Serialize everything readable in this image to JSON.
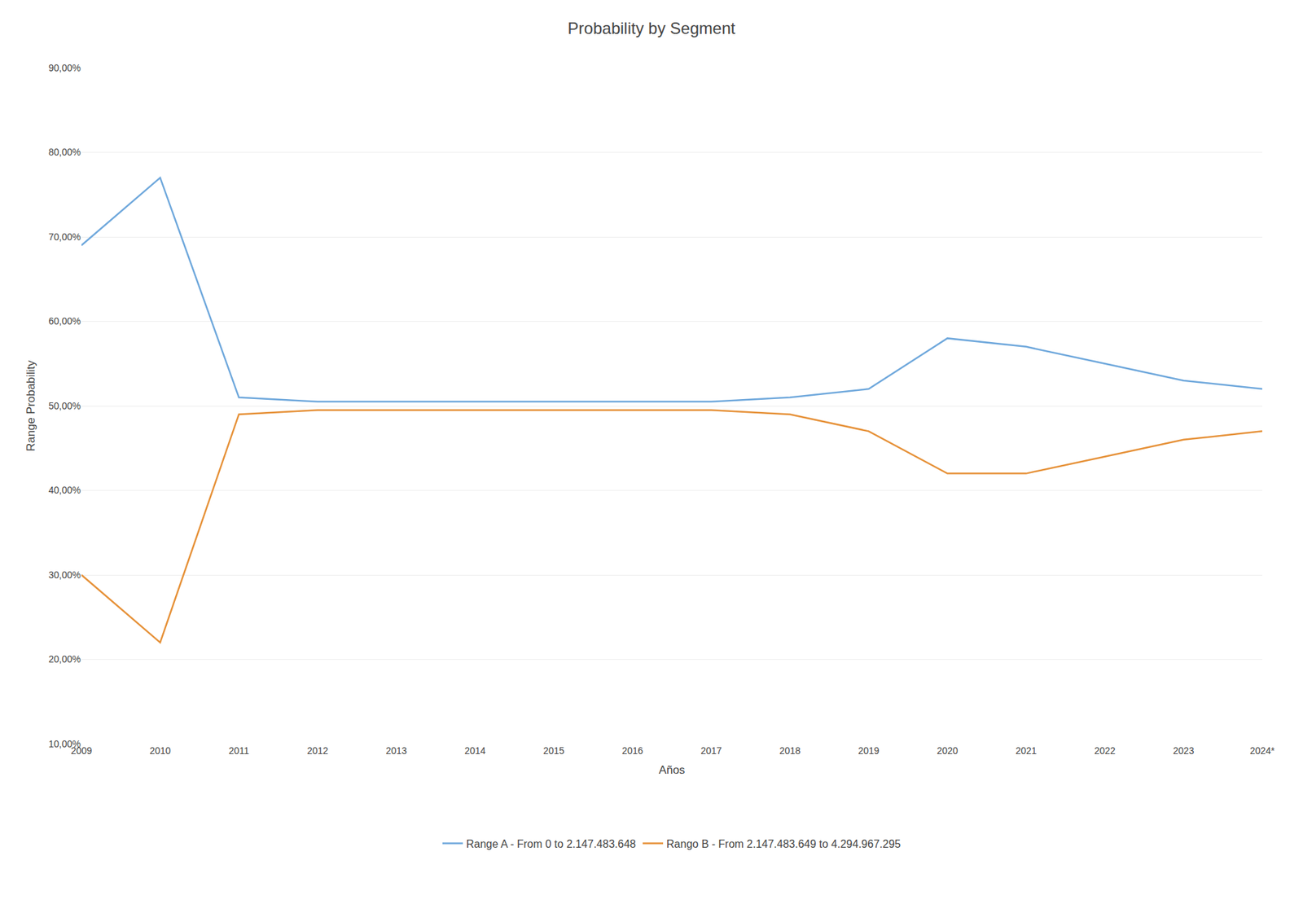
{
  "chart_data": {
    "type": "line",
    "title": "Probability by Segment",
    "xlabel": "Años",
    "ylabel": "Range Probability",
    "categories": [
      "2009",
      "2010",
      "2011",
      "2012",
      "2013",
      "2014",
      "2015",
      "2016",
      "2017",
      "2018",
      "2019",
      "2020",
      "2021",
      "2022",
      "2023",
      "2024*"
    ],
    "series": [
      {
        "name": "Range A - From 0 to 2.147.483.648",
        "color": "#6fa8dc",
        "values": [
          0.69,
          0.77,
          0.51,
          0.505,
          0.505,
          0.505,
          0.505,
          0.505,
          0.505,
          0.51,
          0.52,
          0.58,
          0.57,
          0.55,
          0.53,
          0.52
        ]
      },
      {
        "name": "Rango B - From 2.147.483.649 to 4.294.967.295",
        "color": "#e69138",
        "values": [
          0.3,
          0.22,
          0.49,
          0.495,
          0.495,
          0.495,
          0.495,
          0.495,
          0.495,
          0.49,
          0.47,
          0.42,
          0.42,
          0.44,
          0.46,
          0.47
        ]
      }
    ],
    "ylim": [
      0.1,
      0.9
    ],
    "yticks": [
      {
        "value": 0.1,
        "label": "10,00%"
      },
      {
        "value": 0.2,
        "label": "20,00%"
      },
      {
        "value": 0.3,
        "label": "30,00%"
      },
      {
        "value": 0.4,
        "label": "40,00%"
      },
      {
        "value": 0.5,
        "label": "50,00%"
      },
      {
        "value": 0.6,
        "label": "60,00%"
      },
      {
        "value": 0.7,
        "label": "70,00%"
      },
      {
        "value": 0.8,
        "label": "80,00%"
      },
      {
        "value": 0.9,
        "label": "90,00%"
      }
    ],
    "grid": true,
    "legend": "bottom"
  }
}
